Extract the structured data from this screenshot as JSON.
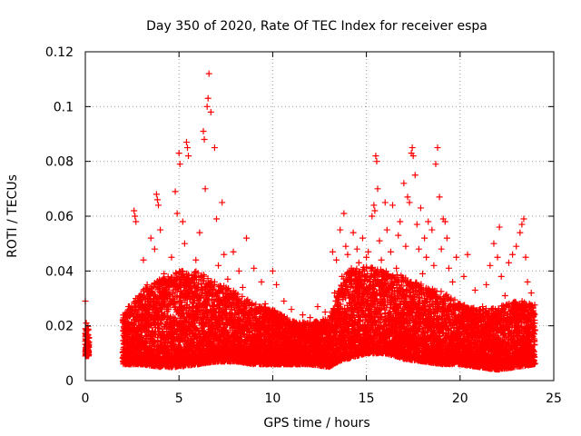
{
  "chart_data": {
    "type": "scatter",
    "title": "Day 350 of 2020, Rate Of TEC Index for receiver espa",
    "xlabel": "GPS time / hours",
    "ylabel": "ROTI / TECUs",
    "xlim": [
      0,
      25
    ],
    "ylim": [
      0,
      0.12
    ],
    "x_ticks": [
      0,
      5,
      10,
      15,
      20,
      25
    ],
    "x_tick_labels": [
      "0",
      "5",
      "10",
      "15",
      "20",
      "25"
    ],
    "y_ticks": [
      0,
      0.02,
      0.04,
      0.06,
      0.08,
      0.1,
      0.12
    ],
    "y_tick_labels": [
      "0",
      "0.02",
      "0.04",
      "0.06",
      "0.08",
      "0.1",
      "0.12"
    ],
    "grid": true,
    "marker": "+",
    "colors": {
      "points": "#ff0000",
      "axes": "#000000",
      "grid": "#a0a0a0"
    },
    "series": [
      {
        "name": "ROTI",
        "points": [
          [
            0.0,
            0.029
          ],
          [
            0.05,
            0.021
          ],
          [
            0.05,
            0.018
          ],
          [
            0.1,
            0.016
          ],
          [
            0.1,
            0.013
          ],
          [
            0.15,
            0.011
          ],
          [
            0.0,
            0.009
          ],
          [
            0.15,
            0.014
          ],
          [
            2.1,
            0.018
          ],
          [
            2.2,
            0.024
          ],
          [
            2.2,
            0.008
          ],
          [
            2.3,
            0.027
          ],
          [
            2.4,
            0.011
          ],
          [
            2.5,
            0.02
          ],
          [
            2.6,
            0.062
          ],
          [
            2.65,
            0.06
          ],
          [
            2.7,
            0.058
          ],
          [
            2.8,
            0.015
          ],
          [
            2.9,
            0.031
          ],
          [
            3.0,
            0.008
          ],
          [
            3.1,
            0.044
          ],
          [
            3.2,
            0.021
          ],
          [
            3.3,
            0.035
          ],
          [
            3.4,
            0.012
          ],
          [
            3.5,
            0.052
          ],
          [
            3.6,
            0.026
          ],
          [
            3.7,
            0.048
          ],
          [
            3.8,
            0.068
          ],
          [
            3.85,
            0.066
          ],
          [
            3.9,
            0.064
          ],
          [
            4.0,
            0.055
          ],
          [
            4.1,
            0.018
          ],
          [
            4.2,
            0.039
          ],
          [
            4.3,
            0.032
          ],
          [
            4.4,
            0.014
          ],
          [
            4.5,
            0.029
          ],
          [
            4.6,
            0.045
          ],
          [
            4.7,
            0.022
          ],
          [
            4.8,
            0.069
          ],
          [
            4.9,
            0.061
          ],
          [
            5.0,
            0.083
          ],
          [
            5.05,
            0.079
          ],
          [
            5.1,
            0.007
          ],
          [
            5.15,
            0.04
          ],
          [
            5.2,
            0.058
          ],
          [
            5.3,
            0.05
          ],
          [
            5.4,
            0.087
          ],
          [
            5.45,
            0.085
          ],
          [
            5.5,
            0.082
          ],
          [
            5.6,
            0.036
          ],
          [
            5.7,
            0.027
          ],
          [
            5.8,
            0.015
          ],
          [
            5.9,
            0.044
          ],
          [
            6.0,
            0.031
          ],
          [
            6.1,
            0.054
          ],
          [
            6.2,
            0.038
          ],
          [
            6.3,
            0.091
          ],
          [
            6.35,
            0.088
          ],
          [
            6.4,
            0.07
          ],
          [
            6.5,
            0.1
          ],
          [
            6.55,
            0.103
          ],
          [
            6.6,
            0.112
          ],
          [
            6.7,
            0.098
          ],
          [
            6.8,
            0.033
          ],
          [
            6.9,
            0.085
          ],
          [
            7.0,
            0.059
          ],
          [
            7.1,
            0.042
          ],
          [
            7.2,
            0.028
          ],
          [
            7.3,
            0.065
          ],
          [
            7.4,
            0.046
          ],
          [
            7.5,
            0.023
          ],
          [
            7.6,
            0.037
          ],
          [
            7.8,
            0.031
          ],
          [
            7.9,
            0.047
          ],
          [
            8.0,
            0.019
          ],
          [
            8.2,
            0.04
          ],
          [
            8.4,
            0.034
          ],
          [
            8.6,
            0.052
          ],
          [
            8.8,
            0.025
          ],
          [
            9.0,
            0.041
          ],
          [
            9.2,
            0.018
          ],
          [
            9.4,
            0.036
          ],
          [
            9.6,
            0.028
          ],
          [
            9.8,
            0.022
          ],
          [
            10.0,
            0.04
          ],
          [
            10.2,
            0.035
          ],
          [
            10.4,
            0.019
          ],
          [
            10.6,
            0.029
          ],
          [
            10.8,
            0.016
          ],
          [
            11.0,
            0.026
          ],
          [
            11.2,
            0.021
          ],
          [
            11.4,
            0.018
          ],
          [
            11.6,
            0.024
          ],
          [
            11.8,
            0.017
          ],
          [
            12.0,
            0.023
          ],
          [
            12.2,
            0.015
          ],
          [
            12.4,
            0.027
          ],
          [
            12.6,
            0.019
          ],
          [
            12.8,
            0.025
          ],
          [
            13.0,
            0.022
          ],
          [
            13.2,
            0.047
          ],
          [
            13.3,
            0.032
          ],
          [
            13.4,
            0.044
          ],
          [
            13.5,
            0.015
          ],
          [
            13.6,
            0.055
          ],
          [
            13.7,
            0.038
          ],
          [
            13.8,
            0.061
          ],
          [
            13.9,
            0.049
          ],
          [
            14.0,
            0.046
          ],
          [
            14.1,
            0.023
          ],
          [
            14.2,
            0.041
          ],
          [
            14.3,
            0.054
          ],
          [
            14.4,
            0.037
          ],
          [
            14.5,
            0.048
          ],
          [
            14.6,
            0.043
          ],
          [
            14.7,
            0.035
          ],
          [
            14.8,
            0.052
          ],
          [
            14.9,
            0.028
          ],
          [
            15.0,
            0.045
          ],
          [
            15.1,
            0.047
          ],
          [
            15.2,
            0.026
          ],
          [
            15.3,
            0.06
          ],
          [
            15.4,
            0.064
          ],
          [
            15.45,
            0.062
          ],
          [
            15.5,
            0.082
          ],
          [
            15.55,
            0.08
          ],
          [
            15.6,
            0.07
          ],
          [
            15.7,
            0.051
          ],
          [
            15.8,
            0.044
          ],
          [
            15.9,
            0.038
          ],
          [
            16.0,
            0.065
          ],
          [
            16.1,
            0.055
          ],
          [
            16.2,
            0.033
          ],
          [
            16.3,
            0.047
          ],
          [
            16.4,
            0.064
          ],
          [
            16.5,
            0.026
          ],
          [
            16.6,
            0.041
          ],
          [
            16.7,
            0.053
          ],
          [
            16.8,
            0.058
          ],
          [
            16.9,
            0.036
          ],
          [
            17.0,
            0.072
          ],
          [
            17.1,
            0.049
          ],
          [
            17.2,
            0.067
          ],
          [
            17.3,
            0.065
          ],
          [
            17.4,
            0.083
          ],
          [
            17.45,
            0.085
          ],
          [
            17.5,
            0.082
          ],
          [
            17.6,
            0.075
          ],
          [
            17.7,
            0.057
          ],
          [
            17.8,
            0.048
          ],
          [
            17.9,
            0.063
          ],
          [
            18.0,
            0.039
          ],
          [
            18.1,
            0.052
          ],
          [
            18.2,
            0.045
          ],
          [
            18.3,
            0.058
          ],
          [
            18.4,
            0.031
          ],
          [
            18.5,
            0.055
          ],
          [
            18.6,
            0.042
          ],
          [
            18.7,
            0.079
          ],
          [
            18.8,
            0.085
          ],
          [
            18.9,
            0.067
          ],
          [
            19.0,
            0.048
          ],
          [
            19.1,
            0.059
          ],
          [
            19.2,
            0.058
          ],
          [
            19.3,
            0.052
          ],
          [
            19.4,
            0.041
          ],
          [
            19.6,
            0.036
          ],
          [
            19.8,
            0.045
          ],
          [
            20.0,
            0.028
          ],
          [
            20.2,
            0.038
          ],
          [
            20.4,
            0.046
          ],
          [
            20.6,
            0.024
          ],
          [
            20.8,
            0.033
          ],
          [
            21.0,
            0.019
          ],
          [
            21.2,
            0.027
          ],
          [
            21.4,
            0.035
          ],
          [
            21.6,
            0.042
          ],
          [
            21.8,
            0.05
          ],
          [
            22.0,
            0.045
          ],
          [
            22.1,
            0.056
          ],
          [
            22.2,
            0.038
          ],
          [
            22.4,
            0.031
          ],
          [
            22.6,
            0.043
          ],
          [
            22.8,
            0.046
          ],
          [
            23.0,
            0.049
          ],
          [
            23.2,
            0.054
          ],
          [
            23.3,
            0.057
          ],
          [
            23.4,
            0.059
          ],
          [
            23.5,
            0.045
          ],
          [
            23.6,
            0.036
          ],
          [
            23.7,
            0.028
          ],
          [
            23.8,
            0.032
          ],
          [
            23.9,
            0.021
          ]
        ],
        "band_samples": [
          [
            0.0,
            0.009,
            0.019
          ],
          [
            0.2,
            0.009,
            0.021
          ],
          [
            2.0,
            0.006,
            0.024
          ],
          [
            3.0,
            0.006,
            0.033
          ],
          [
            4.0,
            0.005,
            0.037
          ],
          [
            5.0,
            0.005,
            0.04
          ],
          [
            6.0,
            0.006,
            0.04
          ],
          [
            7.0,
            0.007,
            0.036
          ],
          [
            8.0,
            0.007,
            0.033
          ],
          [
            9.0,
            0.006,
            0.028
          ],
          [
            10.0,
            0.006,
            0.026
          ],
          [
            11.0,
            0.006,
            0.022
          ],
          [
            12.0,
            0.006,
            0.021
          ],
          [
            13.0,
            0.005,
            0.023
          ],
          [
            13.5,
            0.007,
            0.033
          ],
          [
            14.0,
            0.008,
            0.04
          ],
          [
            15.0,
            0.01,
            0.042
          ],
          [
            16.0,
            0.01,
            0.04
          ],
          [
            17.0,
            0.008,
            0.038
          ],
          [
            18.0,
            0.007,
            0.035
          ],
          [
            19.0,
            0.006,
            0.033
          ],
          [
            20.0,
            0.006,
            0.028
          ],
          [
            21.0,
            0.005,
            0.026
          ],
          [
            22.0,
            0.004,
            0.027
          ],
          [
            23.0,
            0.005,
            0.029
          ],
          [
            24.0,
            0.006,
            0.029
          ]
        ]
      }
    ]
  }
}
